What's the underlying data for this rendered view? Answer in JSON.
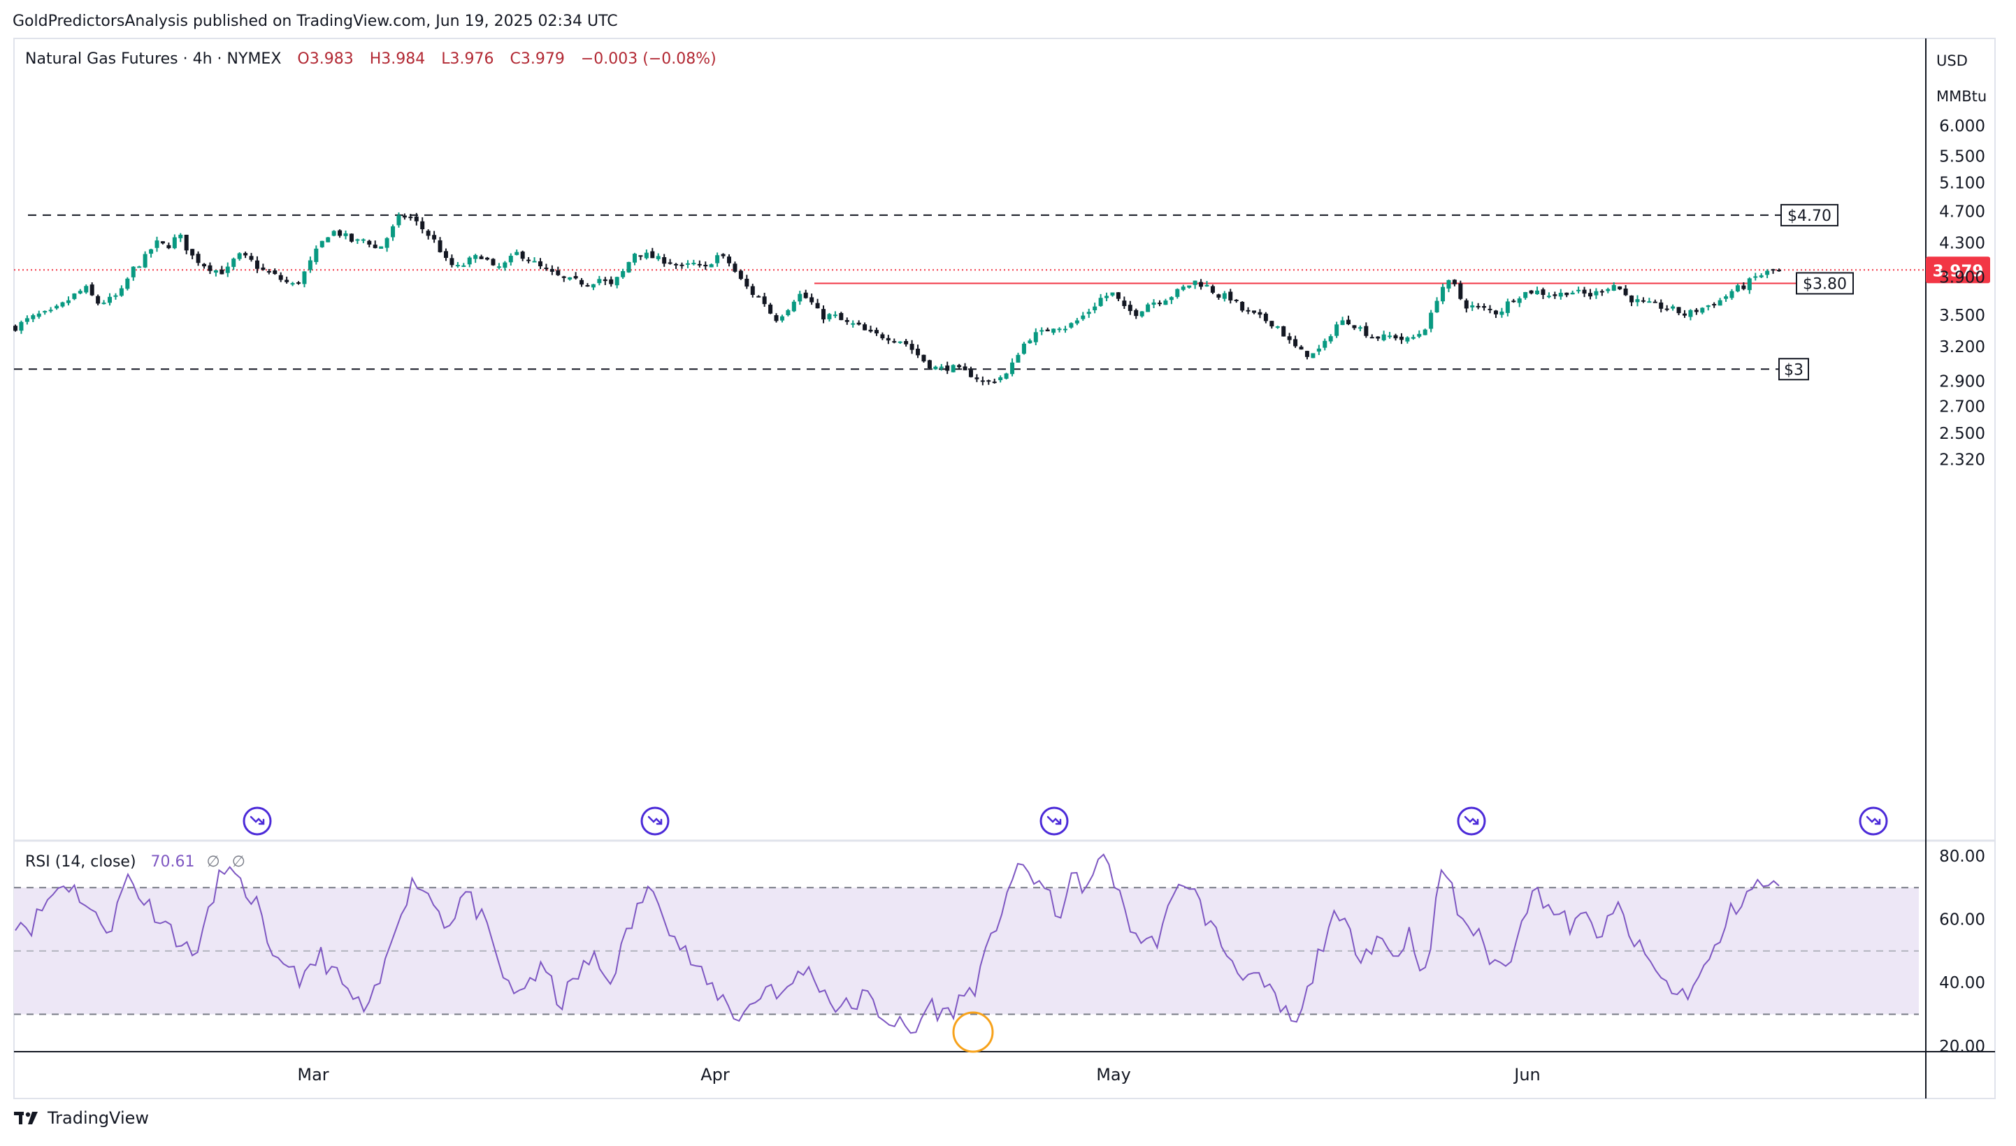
{
  "header": {
    "published": "GoldPredictorsAnalysis published on TradingView.com, Jun 19, 2025 02:34 UTC"
  },
  "legend": {
    "symbol": "Natural Gas Futures · 4h · NYMEX",
    "open": "O3.983",
    "high": "H3.984",
    "low": "L3.976",
    "close": "C3.979",
    "change": "−0.003 (−0.08%)"
  },
  "rsi_legend": {
    "label": "RSI (14, close)",
    "value": "70.61",
    "extra1": "∅",
    "extra2": "∅"
  },
  "price_axis": {
    "currency": "USD",
    "unit": "MMBtu",
    "ticks": [
      "6.000",
      "5.500",
      "5.100",
      "4.700",
      "4.300",
      "3.900",
      "3.500",
      "3.200",
      "2.900",
      "2.700",
      "2.500",
      "2.320"
    ]
  },
  "rsi_axis": {
    "ticks": [
      "80.00",
      "60.00",
      "40.00",
      "20.00"
    ]
  },
  "time_axis": {
    "labels": [
      "Mar",
      "Apr",
      "May",
      "Jun"
    ]
  },
  "levels": [
    {
      "label": "$4.70",
      "value": 4.65,
      "style": "dashed",
      "color": "#131722"
    },
    {
      "label": "$3.80",
      "value": 3.83,
      "style": "solid",
      "color": "#f23645"
    },
    {
      "label": "$3",
      "value": 3.0,
      "style": "dashed",
      "color": "#131722"
    }
  ],
  "last_price": {
    "label": "3.979",
    "value": 3.979
  },
  "footer": {
    "brand": "TradingView"
  },
  "colors": {
    "up": "#089981",
    "down": "#131722",
    "rsi_line": "#7e57c2",
    "rsi_band": "#ede7f6",
    "accent": "#f23645",
    "event_icon": "#4b2ad8"
  },
  "chart_data": {
    "type": "candlestick",
    "title": "Natural Gas Futures · 4h · NYMEX",
    "xlabel": "",
    "ylabel": "USD / MMBtu",
    "y_scale": "log",
    "ylim": [
      2.2,
      6.4
    ],
    "x_ticks": [
      "Mar",
      "Apr",
      "May",
      "Jun"
    ],
    "price_path": [
      [
        3.38,
        3.45
      ],
      [
        3.5,
        3.52
      ],
      [
        3.6,
        3.7
      ],
      [
        3.78,
        3.62
      ],
      [
        3.65,
        3.72
      ],
      [
        3.98,
        4.1
      ],
      [
        4.3,
        4.25
      ],
      [
        4.4,
        4.15
      ],
      [
        4.05,
        3.98
      ],
      [
        3.95,
        4.15
      ],
      [
        4.1,
        3.98
      ],
      [
        3.93,
        3.85
      ],
      [
        3.8,
        4.0
      ],
      [
        4.25,
        4.45
      ],
      [
        4.4,
        4.3
      ],
      [
        4.35,
        4.2
      ],
      [
        4.4,
        4.65
      ],
      [
        4.6,
        4.45
      ],
      [
        4.3,
        4.05
      ],
      [
        4.0,
        4.1
      ],
      [
        4.15,
        3.98
      ],
      [
        4.05,
        4.18
      ],
      [
        4.1,
        4.0
      ],
      [
        3.93,
        3.87
      ],
      [
        3.85,
        3.83
      ],
      [
        3.88,
        3.8
      ],
      [
        3.95,
        4.18
      ],
      [
        4.15,
        4.1
      ],
      [
        4.08,
        4.0
      ],
      [
        4.05,
        3.98
      ],
      [
        4.15,
        4.08
      ],
      [
        3.88,
        3.73
      ],
      [
        3.65,
        3.45
      ],
      [
        3.55,
        3.72
      ],
      [
        3.65,
        3.48
      ],
      [
        3.5,
        3.42
      ],
      [
        3.4,
        3.32
      ],
      [
        3.3,
        3.28
      ],
      [
        3.25,
        3.15
      ],
      [
        3.05,
        3.0
      ],
      [
        3.02,
        2.98
      ],
      [
        2.95,
        2.88
      ],
      [
        2.92,
        2.96
      ],
      [
        3.18,
        3.3
      ],
      [
        3.33,
        3.4
      ],
      [
        3.38,
        3.45
      ],
      [
        3.55,
        3.68
      ],
      [
        3.72,
        3.55
      ],
      [
        3.52,
        3.62
      ],
      [
        3.65,
        3.7
      ],
      [
        3.78,
        3.85
      ],
      [
        3.8,
        3.7
      ],
      [
        3.68,
        3.55
      ],
      [
        3.5,
        3.45
      ],
      [
        3.4,
        3.25
      ],
      [
        3.15,
        3.12
      ],
      [
        3.2,
        3.4
      ],
      [
        3.45,
        3.38
      ],
      [
        3.3,
        3.28
      ],
      [
        3.3,
        3.25
      ],
      [
        3.3,
        3.42
      ],
      [
        3.78,
        3.85
      ],
      [
        3.6,
        3.58
      ],
      [
        3.55,
        3.52
      ],
      [
        3.65,
        3.72
      ],
      [
        3.75,
        3.72
      ],
      [
        3.7,
        3.75
      ],
      [
        3.72,
        3.7
      ],
      [
        3.78,
        3.82
      ],
      [
        3.68,
        3.63
      ],
      [
        3.6,
        3.58
      ],
      [
        3.55,
        3.5
      ],
      [
        3.55,
        3.6
      ],
      [
        3.65,
        3.75
      ],
      [
        3.8,
        3.9
      ],
      [
        3.95,
        3.99
      ]
    ],
    "rsi": {
      "name": "RSI (14, close)",
      "ylim": [
        15,
        88
      ],
      "bands": [
        30,
        50,
        70
      ],
      "path": [
        60,
        58,
        66,
        72,
        68,
        60,
        58,
        74,
        66,
        61,
        55,
        48,
        60,
        78,
        70,
        66,
        45,
        47,
        40,
        49,
        42,
        35,
        30,
        44,
        64,
        73,
        66,
        58,
        69,
        61,
        48,
        35,
        41,
        44,
        33,
        42,
        48,
        40,
        53,
        66,
        70,
        55,
        48,
        40,
        36,
        29,
        33,
        40,
        35,
        45,
        41,
        33,
        32,
        36,
        30,
        27,
        23,
        34,
        29,
        35,
        40,
        55,
        72,
        76,
        71,
        61,
        73,
        70,
        82,
        64,
        54,
        52,
        63,
        74,
        63,
        54,
        46,
        42,
        38,
        31,
        26,
        44,
        60,
        57,
        49,
        55,
        48,
        56,
        41,
        79,
        62,
        56,
        48,
        44,
        63,
        69,
        62,
        58,
        60,
        55,
        64,
        52,
        46,
        39,
        36,
        41,
        50,
        62,
        69,
        71,
        70.6
      ]
    }
  }
}
